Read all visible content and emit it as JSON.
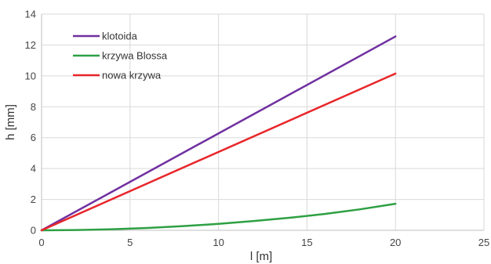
{
  "chart_data": {
    "type": "line",
    "title": "",
    "xlabel": "l [m]",
    "ylabel": "h [mm]",
    "xlim": [
      0,
      25
    ],
    "ylim": [
      0,
      14
    ],
    "x_ticks": [
      0,
      5,
      10,
      15,
      20,
      25
    ],
    "y_ticks": [
      0,
      2,
      4,
      6,
      8,
      10,
      12,
      14
    ],
    "grid": true,
    "legend_position": "top-left",
    "series": [
      {
        "name": "klotoida",
        "color": "#7030a0",
        "x": [
          0,
          20
        ],
        "y": [
          0,
          12.55
        ]
      },
      {
        "name": "krzywa Blossa",
        "color": "#2ea043",
        "x": [
          0,
          2,
          4,
          6,
          8,
          10,
          12,
          14,
          16,
          18,
          20
        ],
        "y": [
          0,
          0.02,
          0.07,
          0.15,
          0.27,
          0.42,
          0.6,
          0.81,
          1.06,
          1.36,
          1.72
        ]
      },
      {
        "name": "nowa krzywa",
        "color": "#e8262a",
        "x": [
          0,
          20
        ],
        "y": [
          0,
          10.15
        ]
      }
    ]
  }
}
